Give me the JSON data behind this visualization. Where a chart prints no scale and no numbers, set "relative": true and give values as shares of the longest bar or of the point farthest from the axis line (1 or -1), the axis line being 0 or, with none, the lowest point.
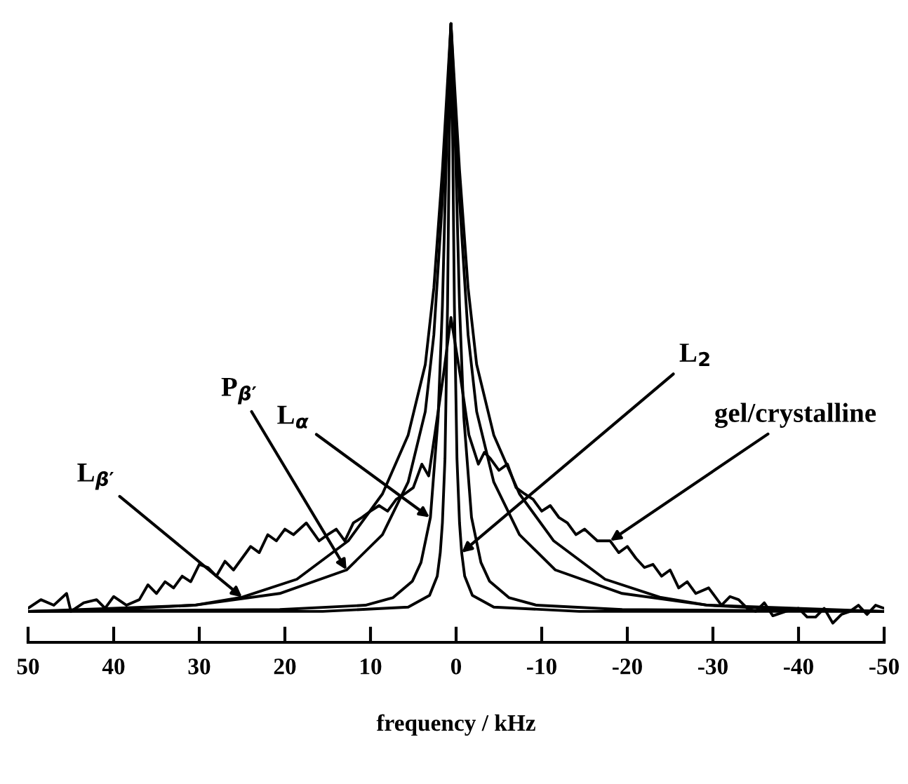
{
  "chart_data": {
    "type": "line",
    "relative": true,
    "xlabel": "frequency / kHz",
    "xlim": [
      50,
      -50
    ],
    "xticks": [
      50,
      40,
      30,
      20,
      10,
      0,
      -10,
      -20,
      -30,
      -40,
      -50
    ],
    "marker": "none",
    "line_style": "solid",
    "series": [
      {
        "color": "#000000",
        "x": [
          50,
          15.6,
          5.6,
          3.1,
          2.2,
          1.85,
          1.6,
          1.3,
          1.0,
          0.8,
          0.6,
          0.4,
          0.2,
          -0.1,
          -0.4,
          -0.65,
          -1.0,
          -1.9,
          -4.4,
          -14.4,
          -50
        ],
        "values": [
          0.05,
          0.05,
          0.057,
          0.076,
          0.107,
          0.145,
          0.193,
          0.297,
          0.544,
          0.81,
          1,
          0.81,
          0.544,
          0.297,
          0.193,
          0.145,
          0.107,
          0.076,
          0.057,
          0.05,
          0.05
        ]
      },
      {
        "color": "#000000",
        "x": [
          50,
          20.6,
          10.6,
          7.4,
          5.1,
          4.1,
          3.0,
          2.1,
          1.6,
          1.1,
          0.6,
          0.1,
          -0.4,
          -0.9,
          -1.8,
          -2.9,
          -3.9,
          -6.2,
          -9.4,
          -19.4,
          -50
        ],
        "values": [
          0.05,
          0.053,
          0.06,
          0.072,
          0.099,
          0.129,
          0.202,
          0.364,
          0.544,
          0.81,
          1,
          0.81,
          0.544,
          0.364,
          0.202,
          0.129,
          0.099,
          0.072,
          0.06,
          0.053,
          0.05
        ]
      },
      {
        "color": "#000000",
        "x": [
          50,
          30.6,
          20.6,
          12.8,
          8.6,
          5.6,
          3.6,
          2.6,
          1.6,
          0.6,
          -0.4,
          -1.4,
          -2.4,
          -4.4,
          -7.4,
          -11.6,
          -19.4,
          -29.4,
          -50
        ],
        "values": [
          0.05,
          0.06,
          0.079,
          0.117,
          0.174,
          0.259,
          0.373,
          0.497,
          0.715,
          1,
          0.715,
          0.497,
          0.373,
          0.259,
          0.174,
          0.117,
          0.079,
          0.06,
          0.05
        ]
      },
      {
        "color": "#000000",
        "x": [
          50,
          40.6,
          30.6,
          25.0,
          18.6,
          12.6,
          8.6,
          5.6,
          3.6,
          2.6,
          1.6,
          0.6,
          -0.4,
          -1.4,
          -2.4,
          -4.4,
          -7.4,
          -11.4,
          -17.4,
          -23.8,
          -29.4,
          -39.4,
          -50
        ],
        "values": [
          0.05,
          0.053,
          0.06,
          0.073,
          0.102,
          0.164,
          0.24,
          0.335,
          0.449,
          0.573,
          0.763,
          1,
          0.763,
          0.573,
          0.449,
          0.335,
          0.24,
          0.164,
          0.102,
          0.073,
          0.06,
          0.053,
          0.05
        ]
      },
      {
        "color": "#000000",
        "x": [
          50,
          48.5,
          47,
          45.5,
          45,
          43.5,
          42,
          41,
          40,
          38.5,
          37,
          36,
          35,
          34,
          33,
          32,
          31,
          30,
          29,
          28,
          27,
          26,
          25,
          24,
          23,
          22,
          21,
          20,
          19,
          17.5,
          16,
          15,
          14,
          13,
          12,
          11,
          10,
          9,
          8,
          7,
          6,
          5,
          4,
          3.2,
          2.5,
          1.5,
          0.6,
          -0.5,
          -1.5,
          -2.6,
          -3.3,
          -4,
          -5,
          -6,
          -7,
          -8,
          -9,
          -10,
          -11,
          -12,
          -13,
          -14,
          -15,
          -16.5,
          -18,
          -19,
          -20,
          -21,
          -22,
          -23,
          -24,
          -25,
          -26,
          -27,
          -28,
          -29.5,
          -31,
          -32,
          -33,
          -34,
          -35,
          -36,
          -37,
          -38.5,
          -40,
          -41,
          -42,
          -43,
          -44,
          -45,
          -46,
          -47,
          -48,
          -49,
          -50
        ],
        "values": [
          0.055,
          0.069,
          0.06,
          0.079,
          0.05,
          0.064,
          0.069,
          0.055,
          0.074,
          0.06,
          0.069,
          0.093,
          0.079,
          0.098,
          0.088,
          0.107,
          0.098,
          0.126,
          0.121,
          0.107,
          0.131,
          0.117,
          0.136,
          0.155,
          0.145,
          0.174,
          0.164,
          0.183,
          0.174,
          0.193,
          0.164,
          0.174,
          0.183,
          0.164,
          0.193,
          0.202,
          0.212,
          0.221,
          0.212,
          0.231,
          0.24,
          0.25,
          0.288,
          0.269,
          0.335,
          0.43,
          0.525,
          0.43,
          0.335,
          0.288,
          0.307,
          0.297,
          0.278,
          0.288,
          0.25,
          0.24,
          0.231,
          0.212,
          0.221,
          0.202,
          0.193,
          0.174,
          0.183,
          0.164,
          0.164,
          0.145,
          0.155,
          0.136,
          0.121,
          0.126,
          0.107,
          0.117,
          0.088,
          0.098,
          0.079,
          0.088,
          0.06,
          0.074,
          0.069,
          0.055,
          0.05,
          0.064,
          0.043,
          0.05,
          0.055,
          0.041,
          0.041,
          0.055,
          0.031,
          0.045,
          0.05,
          0.06,
          0.045,
          0.06,
          0.055
        ]
      }
    ],
    "annotations": [
      {
        "text": "L$_{β′}$",
        "x": 25.0,
        "y": 0.073
      },
      {
        "text": "P$_{β′}$",
        "x": 12.8,
        "y": 0.117
      },
      {
        "text": "L$_{α}$",
        "x": 3.1,
        "y": 0.202
      },
      {
        "text": "L$_{2}$",
        "x": -0.65,
        "y": 0.145
      },
      {
        "text": "gel/crystalline",
        "x": -18,
        "y": 0.164
      }
    ]
  }
}
